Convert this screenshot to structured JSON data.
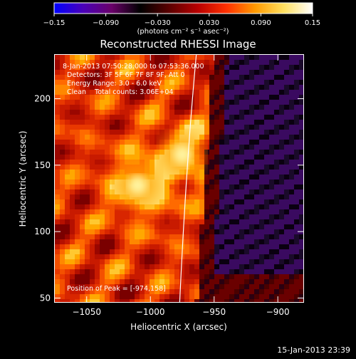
{
  "colorbar": {
    "ticks": [
      "-0.15",
      "-0.090",
      "-0.030",
      "0.030",
      "0.090",
      "0.15"
    ],
    "unit_label": "(photons cm⁻² s⁻¹ asec⁻²)",
    "colors": [
      "#0000ff",
      "#4a00b8",
      "#6a006a",
      "#000000",
      "#5a0000",
      "#b80000",
      "#ff3000",
      "#ff9a00",
      "#ffe060",
      "#ffffff"
    ]
  },
  "chart_data": {
    "type": "heatmap",
    "title": "Reconstructed RHESSI Image",
    "xlabel": "Heliocentric X (arcsec)",
    "ylabel": "Heliocentric Y (arcsec)",
    "xlim": [
      -1075,
      -880
    ],
    "ylim": [
      47,
      233
    ],
    "xticks": [
      {
        "value": -1050,
        "label": "−1050"
      },
      {
        "value": -1000,
        "label": "−1000"
      },
      {
        "value": -950,
        "label": "−950"
      },
      {
        "value": -900,
        "label": "−900"
      }
    ],
    "yticks": [
      {
        "value": 50,
        "label": "50"
      },
      {
        "value": 100,
        "label": "100"
      },
      {
        "value": 150,
        "label": "150"
      },
      {
        "value": 200,
        "label": "200"
      }
    ],
    "annotations": [
      "8-Jan-2013 07:50:28.000 to 07:53:36.000",
      "Detectors: 3F 5F 6F 7F 8F 9F, Att 0",
      "Energy Range: 3.0 - 6.0 keV",
      "Clean    Total counts: 3.06E+04"
    ],
    "peak_label": "Position of Peak = [-974,158]",
    "sources": [
      {
        "x": -1010,
        "y": 135
      },
      {
        "x": -975,
        "y": 158
      }
    ],
    "limb": [
      [
        -964,
        233
      ],
      [
        -972,
        150
      ],
      [
        -977,
        47
      ]
    ]
  },
  "timestamp": "15-Jan-2013 23:39"
}
